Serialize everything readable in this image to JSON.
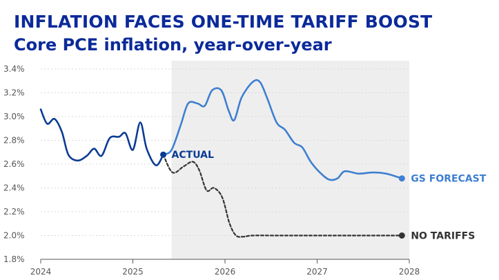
{
  "headline": "INFLATION FACES ONE-TIME TARIFF BOOST",
  "subheadline": "Core PCE inflation, year-over-year",
  "chart_data": {
    "type": "line",
    "title": "INFLATION FACES ONE-TIME TARIFF BOOST",
    "subtitle": "Core PCE inflation, year-over-year",
    "xlabel": "",
    "ylabel": "",
    "xlim": [
      2024.0,
      2028.0
    ],
    "ylim": [
      1.8,
      3.4
    ],
    "x_ticks": [
      2024,
      2025,
      2026,
      2027,
      2028
    ],
    "x_tick_labels": [
      "2024",
      "2025",
      "2026",
      "2027",
      "2028"
    ],
    "y_ticks": [
      1.8,
      2.0,
      2.2,
      2.4,
      2.6,
      2.8,
      3.0,
      3.2,
      3.4
    ],
    "y_tick_labels": [
      "1.8%",
      "2.0%",
      "2.2%",
      "2.4%",
      "2.6%",
      "2.8%",
      "3.0%",
      "3.2%",
      "3.4%"
    ],
    "forecast_region": {
      "start": 2025.42,
      "end": 2028.0,
      "color": "#eeeeee"
    },
    "series": [
      {
        "name": "ACTUAL",
        "color": "#0b3b94",
        "style": "solid",
        "points": [
          [
            2024.0,
            3.06
          ],
          [
            2024.07,
            2.94
          ],
          [
            2024.15,
            2.98
          ],
          [
            2024.23,
            2.87
          ],
          [
            2024.3,
            2.68
          ],
          [
            2024.4,
            2.63
          ],
          [
            2024.5,
            2.67
          ],
          [
            2024.58,
            2.73
          ],
          [
            2024.66,
            2.67
          ],
          [
            2024.75,
            2.82
          ],
          [
            2024.85,
            2.83
          ],
          [
            2024.92,
            2.86
          ],
          [
            2025.0,
            2.72
          ],
          [
            2025.08,
            2.95
          ],
          [
            2025.15,
            2.73
          ],
          [
            2025.25,
            2.59
          ],
          [
            2025.33,
            2.68
          ]
        ]
      },
      {
        "name": "GS FORECAST",
        "color": "#3e7fd0",
        "style": "solid",
        "points": [
          [
            2025.33,
            2.68
          ],
          [
            2025.42,
            2.72
          ],
          [
            2025.52,
            2.93
          ],
          [
            2025.6,
            3.11
          ],
          [
            2025.7,
            3.11
          ],
          [
            2025.78,
            3.09
          ],
          [
            2025.86,
            3.22
          ],
          [
            2025.96,
            3.22
          ],
          [
            2026.04,
            3.05
          ],
          [
            2026.1,
            2.97
          ],
          [
            2026.18,
            3.16
          ],
          [
            2026.3,
            3.29
          ],
          [
            2026.38,
            3.29
          ],
          [
            2026.46,
            3.15
          ],
          [
            2026.56,
            2.95
          ],
          [
            2026.65,
            2.89
          ],
          [
            2026.75,
            2.78
          ],
          [
            2026.84,
            2.74
          ],
          [
            2026.93,
            2.62
          ],
          [
            2027.03,
            2.53
          ],
          [
            2027.13,
            2.47
          ],
          [
            2027.22,
            2.48
          ],
          [
            2027.3,
            2.54
          ],
          [
            2027.45,
            2.52
          ],
          [
            2027.6,
            2.53
          ],
          [
            2027.75,
            2.52
          ],
          [
            2027.92,
            2.48
          ]
        ]
      },
      {
        "name": "NO TARIFFS",
        "color": "#333333",
        "style": "dashed",
        "points": [
          [
            2025.33,
            2.68
          ],
          [
            2025.43,
            2.53
          ],
          [
            2025.55,
            2.58
          ],
          [
            2025.65,
            2.62
          ],
          [
            2025.72,
            2.55
          ],
          [
            2025.8,
            2.38
          ],
          [
            2025.88,
            2.4
          ],
          [
            2025.97,
            2.32
          ],
          [
            2026.05,
            2.1
          ],
          [
            2026.12,
            2.0
          ],
          [
            2026.2,
            1.99
          ],
          [
            2026.3,
            2.0
          ],
          [
            2026.6,
            2.0
          ],
          [
            2027.0,
            2.0
          ],
          [
            2027.5,
            2.0
          ],
          [
            2027.92,
            2.0
          ]
        ]
      }
    ],
    "annotations": [
      {
        "text": "ACTUAL",
        "series": "ACTUAL"
      },
      {
        "text": "GS FORECAST",
        "series": "GS FORECAST"
      },
      {
        "text": "NO TARIFFS",
        "series": "NO TARIFFS"
      }
    ]
  }
}
